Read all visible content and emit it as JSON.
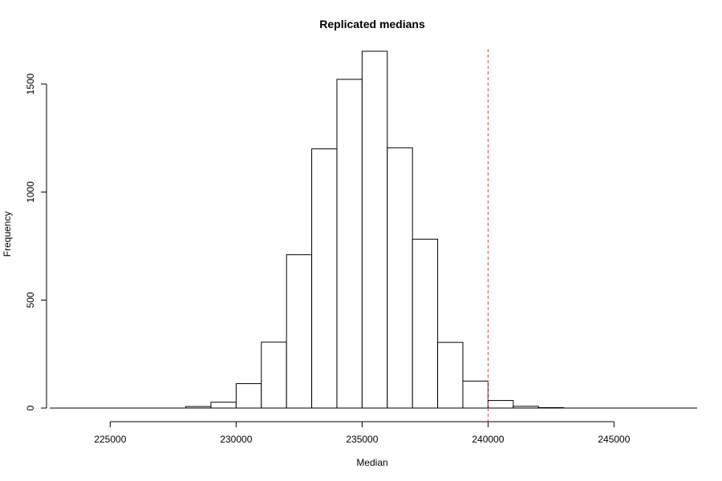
{
  "chart_data": {
    "type": "bar",
    "title": "Replicated medians",
    "xlabel": "Median",
    "ylabel": "Frequency",
    "bin_width": 1000,
    "bins": [
      {
        "start": 228000,
        "end": 229000,
        "count": 7
      },
      {
        "start": 229000,
        "end": 230000,
        "count": 27
      },
      {
        "start": 230000,
        "end": 231000,
        "count": 113
      },
      {
        "start": 231000,
        "end": 232000,
        "count": 305
      },
      {
        "start": 232000,
        "end": 233000,
        "count": 710
      },
      {
        "start": 233000,
        "end": 234000,
        "count": 1200
      },
      {
        "start": 234000,
        "end": 235000,
        "count": 1522
      },
      {
        "start": 235000,
        "end": 236000,
        "count": 1652
      },
      {
        "start": 236000,
        "end": 237000,
        "count": 1205
      },
      {
        "start": 237000,
        "end": 238000,
        "count": 782
      },
      {
        "start": 238000,
        "end": 239000,
        "count": 304
      },
      {
        "start": 239000,
        "end": 240000,
        "count": 125
      },
      {
        "start": 240000,
        "end": 241000,
        "count": 35
      },
      {
        "start": 241000,
        "end": 242000,
        "count": 8
      },
      {
        "start": 242000,
        "end": 243000,
        "count": 2
      }
    ],
    "x_ticks": [
      "225000",
      "230000",
      "235000",
      "240000",
      "245000"
    ],
    "y_ticks": [
      "0",
      "500",
      "1000",
      "1500"
    ],
    "xlim": [
      222600,
      248300
    ],
    "ylim": [
      0,
      1700
    ],
    "reference_line": {
      "x": 240000,
      "style": "dashed",
      "color": "#e8414f"
    },
    "bar_fill": "#ffffff",
    "bar_stroke": "#000000",
    "grid": false
  }
}
